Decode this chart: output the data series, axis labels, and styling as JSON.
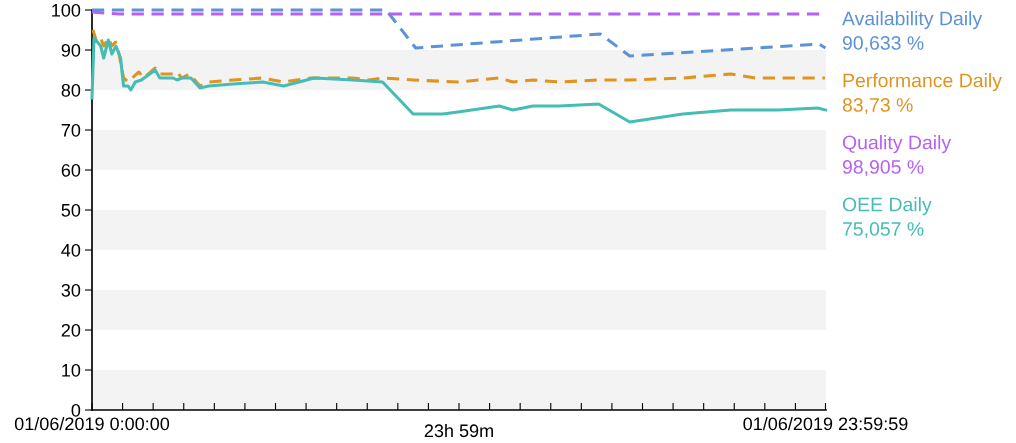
{
  "chart_data": {
    "type": "line",
    "xlim": [
      "2019-06-01T00:00",
      "2019-06-02T00:00"
    ],
    "ylim": [
      0,
      100
    ],
    "yticks": [
      0,
      10,
      20,
      30,
      40,
      50,
      60,
      70,
      80,
      90,
      100
    ],
    "xticks": [
      {
        "value": "2019-06-01T00:00",
        "label": "01/06/2019 0:00:00"
      },
      {
        "value": "2019-06-01T01:00",
        "label": null
      },
      {
        "value": "2019-06-01T02:00",
        "label": null
      },
      {
        "value": "2019-06-01T03:00",
        "label": null
      },
      {
        "value": "2019-06-01T04:00",
        "label": null
      },
      {
        "value": "2019-06-01T05:00",
        "label": null
      },
      {
        "value": "2019-06-01T06:00",
        "label": null
      },
      {
        "value": "2019-06-01T07:00",
        "label": null
      },
      {
        "value": "2019-06-01T08:00",
        "label": null
      },
      {
        "value": "2019-06-01T09:00",
        "label": null
      },
      {
        "value": "2019-06-01T10:00",
        "label": null
      },
      {
        "value": "2019-06-01T11:00",
        "label": null
      },
      {
        "value": "2019-06-01T12:00",
        "label": null
      },
      {
        "value": "2019-06-01T13:00",
        "label": null
      },
      {
        "value": "2019-06-01T14:00",
        "label": null
      },
      {
        "value": "2019-06-01T15:00",
        "label": null
      },
      {
        "value": "2019-06-01T16:00",
        "label": null
      },
      {
        "value": "2019-06-01T17:00",
        "label": null
      },
      {
        "value": "2019-06-01T18:00",
        "label": null
      },
      {
        "value": "2019-06-01T19:00",
        "label": null
      },
      {
        "value": "2019-06-01T20:00",
        "label": null
      },
      {
        "value": "2019-06-01T21:00",
        "label": null
      },
      {
        "value": "2019-06-01T22:00",
        "label": null
      },
      {
        "value": "2019-06-01T23:00",
        "label": null
      },
      {
        "value": "2019-06-01T23:59",
        "label": "01/06/2019 23:59:59"
      }
    ],
    "annotations": [
      "23h 59m"
    ],
    "grid": false,
    "legend": "right",
    "marker": "none",
    "bands": [
      {
        "axis": "y",
        "from": 0,
        "to": 10,
        "color": "#f3f3f3"
      },
      {
        "axis": "y",
        "from": 20,
        "to": 30,
        "color": "#f3f3f3"
      },
      {
        "axis": "y",
        "from": 40,
        "to": 50,
        "color": "#f3f3f3"
      },
      {
        "axis": "y",
        "from": 60,
        "to": 70,
        "color": "#f3f3f3"
      },
      {
        "axis": "y",
        "from": 80,
        "to": 90,
        "color": "#f3f3f3"
      }
    ],
    "series": [
      {
        "name": "Availability Daily\n90,633 %",
        "color": "#5b93d6",
        "line_style": "dashed",
        "x": [
          "2019-06-01T00:00",
          "2019-06-01T09:37",
          "2019-06-01T10:35",
          "2019-06-01T16:37",
          "2019-06-01T17:35",
          "2019-06-01T23:46",
          "2019-06-01T23:59"
        ],
        "values": [
          100,
          100,
          90.5,
          94,
          88.5,
          91.5,
          90.5
        ]
      },
      {
        "name": "Performance Daily\n83,73 %",
        "color": "#e09420",
        "line_style": "dashed",
        "x": [
          "2019-06-01T00:02",
          "2019-06-01T00:09",
          "2019-06-01T00:17",
          "2019-06-01T00:23",
          "2019-06-01T00:32",
          "2019-06-01T00:39",
          "2019-06-01T00:46",
          "2019-06-01T00:53",
          "2019-06-01T01:02",
          "2019-06-01T01:11",
          "2019-06-01T01:19",
          "2019-06-01T01:32",
          "2019-06-01T01:41",
          "2019-06-01T02:04",
          "2019-06-01T02:13",
          "2019-06-01T02:39",
          "2019-06-01T02:47",
          "2019-06-01T02:56",
          "2019-06-01T03:11",
          "2019-06-01T03:32",
          "2019-06-01T03:49",
          "2019-06-01T04:37",
          "2019-06-01T05:35",
          "2019-06-01T06:16",
          "2019-06-01T07:09",
          "2019-06-01T08:32",
          "2019-06-01T09:02",
          "2019-06-01T09:30",
          "2019-06-01T10:30",
          "2019-06-01T11:58",
          "2019-06-01T13:19",
          "2019-06-01T13:46",
          "2019-06-01T14:25",
          "2019-06-01T15:17",
          "2019-06-01T16:34",
          "2019-06-01T17:34",
          "2019-06-01T19:19",
          "2019-06-01T20:53",
          "2019-06-01T21:41",
          "2019-06-01T22:26",
          "2019-06-01T22:51",
          "2019-06-01T23:58"
        ],
        "values": [
          95,
          92,
          93,
          91,
          93,
          91,
          92,
          89,
          83,
          82,
          83,
          84.5,
          83,
          85.5,
          84,
          84,
          84.5,
          83,
          84,
          81,
          82,
          82.5,
          83,
          82,
          83,
          83,
          82.5,
          83,
          82.5,
          82,
          83,
          82,
          82.5,
          82,
          82.5,
          82.5,
          83,
          84,
          83,
          83,
          83,
          83
        ]
      },
      {
        "name": "Quality Daily\n98,905 %",
        "color": "#b660f5",
        "line_style": "dashed",
        "x": [
          "2019-06-01T00:00",
          "2019-06-01T00:53",
          "2019-06-01T23:59"
        ],
        "values": [
          99.5,
          99,
          99
        ]
      },
      {
        "name": "OEE Daily\n75,057 %",
        "color": "#45bdb5",
        "line_style": "solid",
        "x": [
          "2019-06-01T00:00",
          "2019-06-01T00:04",
          "2019-06-01T00:17",
          "2019-06-01T00:23",
          "2019-06-01T00:32",
          "2019-06-01T00:39",
          "2019-06-01T00:47",
          "2019-06-01T00:56",
          "2019-06-01T01:02",
          "2019-06-01T01:11",
          "2019-06-01T01:16",
          "2019-06-01T01:25",
          "2019-06-01T01:37",
          "2019-06-01T02:04",
          "2019-06-01T02:13",
          "2019-06-01T02:39",
          "2019-06-01T02:47",
          "2019-06-01T02:56",
          "2019-06-01T03:14",
          "2019-06-01T03:32",
          "2019-06-01T03:49",
          "2019-06-01T04:37",
          "2019-06-01T05:35",
          "2019-06-01T06:16",
          "2019-06-01T07:16",
          "2019-06-01T08:32",
          "2019-06-01T09:30",
          "2019-06-01T10:30",
          "2019-06-01T11:28",
          "2019-06-01T11:58",
          "2019-06-01T13:19",
          "2019-06-01T13:46",
          "2019-06-01T14:25",
          "2019-06-01T15:17",
          "2019-06-01T16:34",
          "2019-06-01T17:35",
          "2019-06-01T19:19",
          "2019-06-01T20:53",
          "2019-06-01T22:26",
          "2019-06-01T23:44",
          "2019-06-01T23:59"
        ],
        "values": [
          78,
          93,
          91,
          88,
          92.5,
          89,
          91,
          88,
          81,
          81,
          80,
          82,
          82.5,
          85,
          83,
          83,
          82.5,
          83,
          83,
          80.5,
          81,
          81.5,
          82,
          81,
          83,
          82.5,
          82,
          74,
          74,
          74.5,
          76,
          75,
          76,
          76,
          76.5,
          72,
          74,
          75,
          75,
          75.5,
          75
        ]
      }
    ]
  }
}
